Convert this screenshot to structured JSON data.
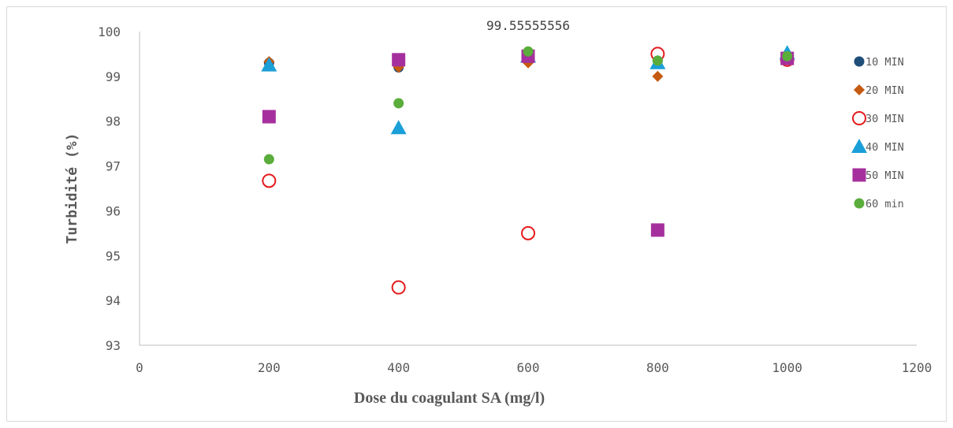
{
  "chart_data": {
    "type": "scatter",
    "title": "",
    "xlabel": "Dose du coagulant SA (mg/l)",
    "ylabel": "Turbidité (%)",
    "xlim": [
      0,
      1200
    ],
    "ylim": [
      93,
      100
    ],
    "x_ticks": [
      "0",
      "200",
      "400",
      "600",
      "800",
      "1000",
      "1200"
    ],
    "y_ticks": [
      "93",
      "94",
      "95",
      "96",
      "97",
      "98",
      "99",
      "100"
    ],
    "grid": false,
    "legend_position": "right",
    "annotation": {
      "text": "99.55555556",
      "x": 600,
      "y": 99.55555556
    },
    "series": [
      {
        "name": "10 MIN",
        "marker": "circle-filled",
        "color": "#1f4e79",
        "points": [
          [
            200,
            99.3
          ],
          [
            400,
            99.2
          ],
          [
            600,
            99.35
          ],
          [
            800,
            99.35
          ],
          [
            1000,
            99.4
          ]
        ]
      },
      {
        "name": "20 MIN",
        "marker": "diamond",
        "color": "#c55a11",
        "points": [
          [
            200,
            99.33
          ],
          [
            400,
            99.2
          ],
          [
            600,
            99.3
          ],
          [
            800,
            99.0
          ],
          [
            1000,
            99.4
          ]
        ]
      },
      {
        "name": "30 MIN",
        "marker": "circle-open",
        "color": "#e41a1c",
        "points": [
          [
            200,
            96.67
          ],
          [
            400,
            94.29
          ],
          [
            600,
            95.5
          ],
          [
            800,
            99.5
          ],
          [
            1000,
            99.37
          ]
        ]
      },
      {
        "name": "40 MIN",
        "marker": "triangle",
        "color": "#1a9fd8",
        "points": [
          [
            200,
            99.25
          ],
          [
            400,
            97.85
          ],
          [
            600,
            99.45
          ],
          [
            800,
            99.3
          ],
          [
            1000,
            99.52
          ]
        ]
      },
      {
        "name": "50 MIN",
        "marker": "square",
        "color": "#a5309d",
        "points": [
          [
            200,
            98.1
          ],
          [
            400,
            99.37
          ],
          [
            600,
            99.45
          ],
          [
            800,
            95.57
          ],
          [
            1000,
            99.4
          ]
        ]
      },
      {
        "name": "60 min",
        "marker": "circle-filled",
        "color": "#5aad3b",
        "points": [
          [
            200,
            97.15
          ],
          [
            400,
            98.4
          ],
          [
            600,
            99.55555556
          ],
          [
            800,
            99.35
          ],
          [
            1000,
            99.45
          ]
        ]
      }
    ]
  }
}
